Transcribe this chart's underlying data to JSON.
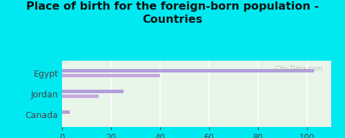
{
  "title": "Place of birth for the foreign-born population -\nCountries",
  "categories": [
    "Canada",
    "Jordan",
    "Egypt"
  ],
  "bar1_values": [
    3,
    25,
    103
  ],
  "bar2_values": [
    0,
    15,
    40
  ],
  "bar1_color": "#b39ddb",
  "bar2_color": "#c8a8e0",
  "background_color": "#00e8f0",
  "plot_bg_top": "#e8f5e9",
  "plot_bg_bottom": "#f5fff5",
  "xlim": [
    0,
    110
  ],
  "xticks": [
    0,
    20,
    40,
    60,
    80,
    100
  ],
  "title_fontsize": 11.5,
  "label_fontsize": 9,
  "tick_fontsize": 8.5,
  "watermark": "City-Data.com"
}
